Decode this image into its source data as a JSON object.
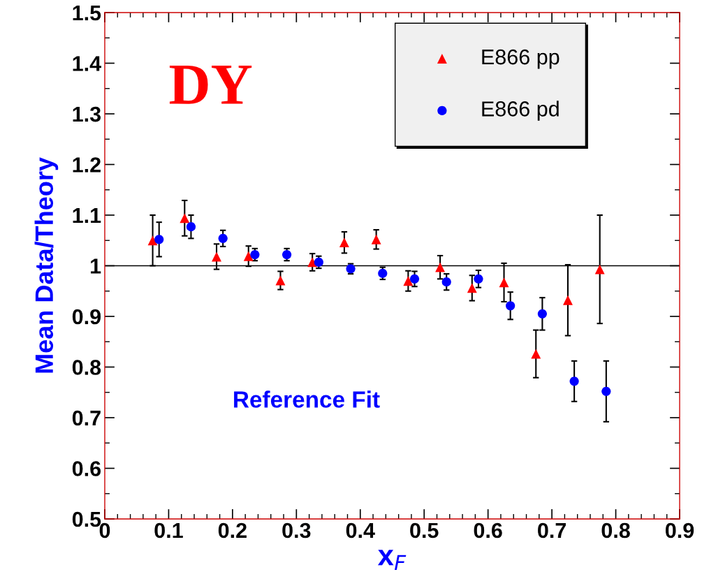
{
  "chart_data": {
    "type": "scatter",
    "xlabel": "x$_{F}$",
    "ylabel": "Mean Data/Theory",
    "annotations": [
      "DY",
      "Reference Fit"
    ],
    "xlim": [
      0,
      0.9
    ],
    "xticks": [
      0,
      0.1,
      0.2,
      0.3,
      0.4,
      0.5,
      0.6,
      0.7,
      0.8,
      0.9
    ],
    "ylim": [
      0.5,
      1.5
    ],
    "yticks": [
      0.5,
      0.6,
      0.7,
      0.8,
      0.9,
      {
        "value": 1,
        "label": "1"
      },
      1.1,
      1.2,
      1.3,
      1.4,
      1.5
    ],
    "ref_lines": [
      {
        "axis": "y",
        "value": 1,
        "color": "#000000"
      }
    ],
    "legend": "top right",
    "grid": false,
    "series": [
      {
        "name": "E866 pp",
        "color": "#ff0000",
        "marker": "triangle",
        "x": [
          0.075,
          0.125,
          0.175,
          0.225,
          0.275,
          0.325,
          0.375,
          0.425,
          0.475,
          0.525,
          0.575,
          0.625,
          0.675,
          0.725,
          0.775
        ],
        "values": [
          1.05,
          1.094,
          1.018,
          1.019,
          0.971,
          1.007,
          1.046,
          1.052,
          0.97,
          0.997,
          0.956,
          0.967,
          0.826,
          0.932,
          0.993
        ],
        "errors": [
          0.05,
          0.035,
          0.025,
          0.02,
          0.018,
          0.017,
          0.021,
          0.019,
          0.02,
          0.023,
          0.025,
          0.038,
          0.047,
          0.07,
          0.107
        ]
      },
      {
        "name": "E866 pd",
        "color": "#0000ff",
        "marker": "circle",
        "x": [
          0.085,
          0.135,
          0.185,
          0.235,
          0.285,
          0.335,
          0.385,
          0.435,
          0.485,
          0.535,
          0.585,
          0.635,
          0.685,
          0.735,
          0.785
        ],
        "values": [
          1.052,
          1.077,
          1.054,
          1.022,
          1.022,
          1.007,
          0.994,
          0.985,
          0.974,
          0.968,
          0.974,
          0.921,
          0.905,
          0.772,
          0.752
        ],
        "errors": [
          0.034,
          0.023,
          0.016,
          0.012,
          0.012,
          0.012,
          0.01,
          0.012,
          0.015,
          0.016,
          0.017,
          0.027,
          0.032,
          0.04,
          0.06
        ]
      }
    ]
  }
}
